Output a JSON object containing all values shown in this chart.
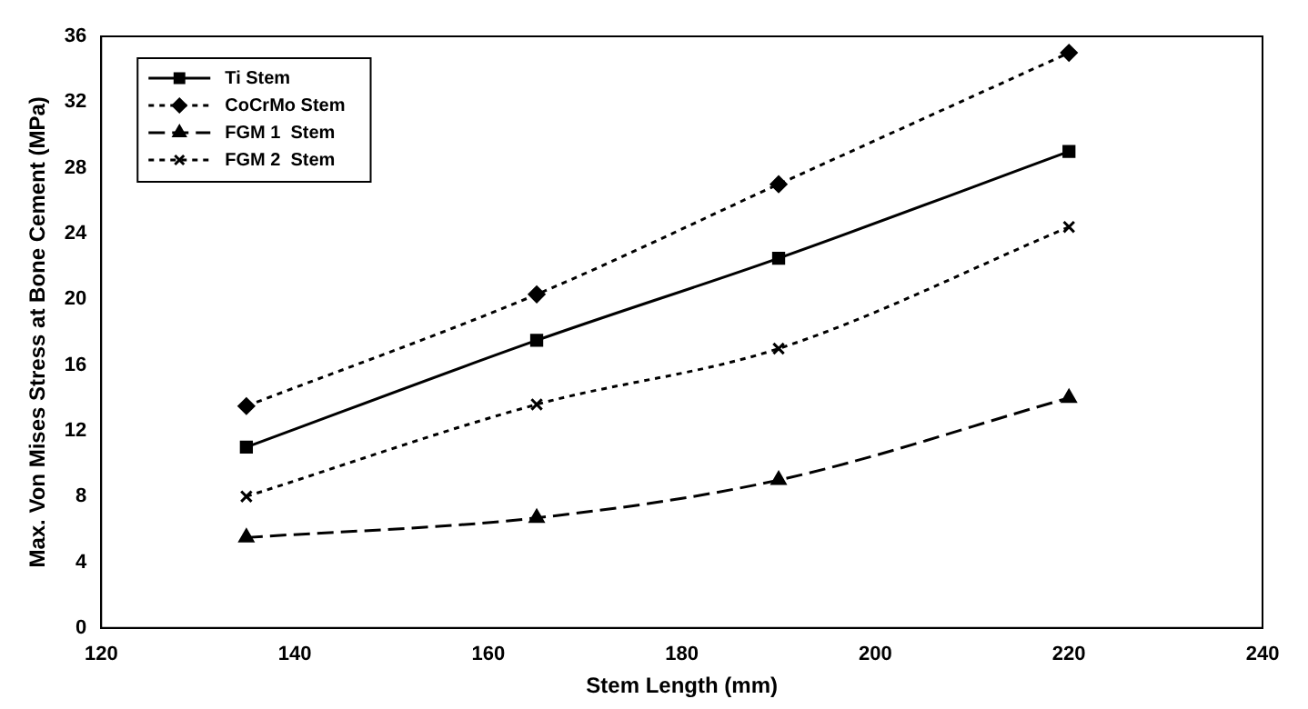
{
  "chart_data": {
    "type": "line",
    "xlabel": "Stem Length (mm)",
    "ylabel": "Max. Von Mises Stress at Bone Cement (MPa)",
    "x": [
      135,
      165,
      190,
      220
    ],
    "series": [
      {
        "name": "Ti Stem",
        "color": "#000000",
        "values": [
          11,
          17.5,
          22.5,
          29
        ],
        "marker": "square",
        "line_style": "solid"
      },
      {
        "name": "CoCrMo Stem",
        "color": "#000000",
        "values": [
          13.5,
          20.3,
          27,
          35
        ],
        "marker": "diamond",
        "line_style": "dotted"
      },
      {
        "name": "FGM 1  Stem",
        "color": "#000000",
        "values": [
          5.5,
          6.7,
          9,
          14
        ],
        "marker": "triangle",
        "line_style": "dashed"
      },
      {
        "name": "FGM 2  Stem",
        "color": "#000000",
        "values": [
          8,
          13.6,
          17,
          24.4
        ],
        "marker": "cross",
        "line_style": "dotted"
      }
    ],
    "xlim": [
      120,
      240
    ],
    "xticks": [
      120,
      140,
      160,
      180,
      200,
      220,
      240
    ],
    "ylim": [
      0,
      36
    ],
    "yticks": [
      0,
      4,
      8,
      12,
      16,
      20,
      24,
      28,
      32,
      36
    ],
    "grid": false,
    "legend": "top left"
  }
}
